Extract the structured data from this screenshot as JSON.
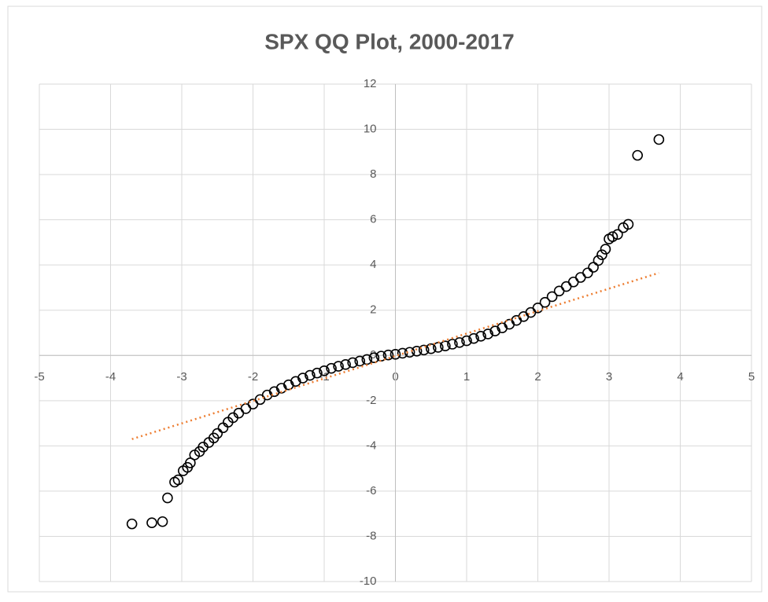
{
  "chart_data": {
    "type": "scatter",
    "title": "SPX QQ Plot, 2000-2017",
    "x": [
      -3.7,
      -3.42,
      -3.27,
      -3.2,
      -3.1,
      -3.05,
      -2.98,
      -2.92,
      -2.88,
      -2.82,
      -2.75,
      -2.7,
      -2.62,
      -2.55,
      -2.5,
      -2.42,
      -2.35,
      -2.28,
      -2.2,
      -2.1,
      -2.0,
      -1.9,
      -1.8,
      -1.7,
      -1.6,
      -1.5,
      -1.4,
      -1.3,
      -1.2,
      -1.1,
      -1.0,
      -0.9,
      -0.8,
      -0.7,
      -0.6,
      -0.5,
      -0.4,
      -0.3,
      -0.2,
      -0.1,
      0,
      0.1,
      0.2,
      0.3,
      0.4,
      0.5,
      0.6,
      0.7,
      0.8,
      0.9,
      1.0,
      1.1,
      1.2,
      1.3,
      1.4,
      1.5,
      1.6,
      1.7,
      1.8,
      1.9,
      2.0,
      2.1,
      2.2,
      2.3,
      2.4,
      2.5,
      2.6,
      2.7,
      2.78,
      2.85,
      2.9,
      2.95,
      3.0,
      3.05,
      3.12,
      3.2,
      3.27,
      3.4,
      3.7
    ],
    "values": [
      -7.45,
      -7.4,
      -7.35,
      -6.3,
      -5.6,
      -5.5,
      -5.1,
      -4.95,
      -4.75,
      -4.4,
      -4.25,
      -4.05,
      -3.85,
      -3.65,
      -3.45,
      -3.2,
      -2.95,
      -2.75,
      -2.55,
      -2.35,
      -2.15,
      -1.95,
      -1.75,
      -1.6,
      -1.45,
      -1.3,
      -1.15,
      -1.0,
      -0.88,
      -0.78,
      -0.68,
      -0.57,
      -0.48,
      -0.4,
      -0.32,
      -0.25,
      -0.18,
      -0.1,
      -0.03,
      0.02,
      0.05,
      0.1,
      0.14,
      0.19,
      0.24,
      0.3,
      0.36,
      0.42,
      0.5,
      0.57,
      0.65,
      0.75,
      0.85,
      0.95,
      1.08,
      1.22,
      1.38,
      1.55,
      1.72,
      1.9,
      2.1,
      2.35,
      2.6,
      2.85,
      3.05,
      3.25,
      3.45,
      3.65,
      3.9,
      4.2,
      4.45,
      4.7,
      5.15,
      5.25,
      5.35,
      5.65,
      5.8,
      8.85,
      9.55
    ],
    "color": "#000000",
    "trendline": {
      "x": [
        -3.7,
        3.7
      ],
      "y": [
        -3.7,
        3.65
      ],
      "color": "#ed7d31"
    },
    "xlim": [
      -5,
      5
    ],
    "ylim": [
      -10,
      12
    ],
    "xticks": [
      -5,
      -4,
      -3,
      -2,
      -1,
      0,
      1,
      2,
      3,
      4,
      5
    ],
    "yticks": [
      -10,
      -8,
      -6,
      -4,
      -2,
      0,
      2,
      4,
      6,
      8,
      10,
      12
    ],
    "grid": true
  }
}
